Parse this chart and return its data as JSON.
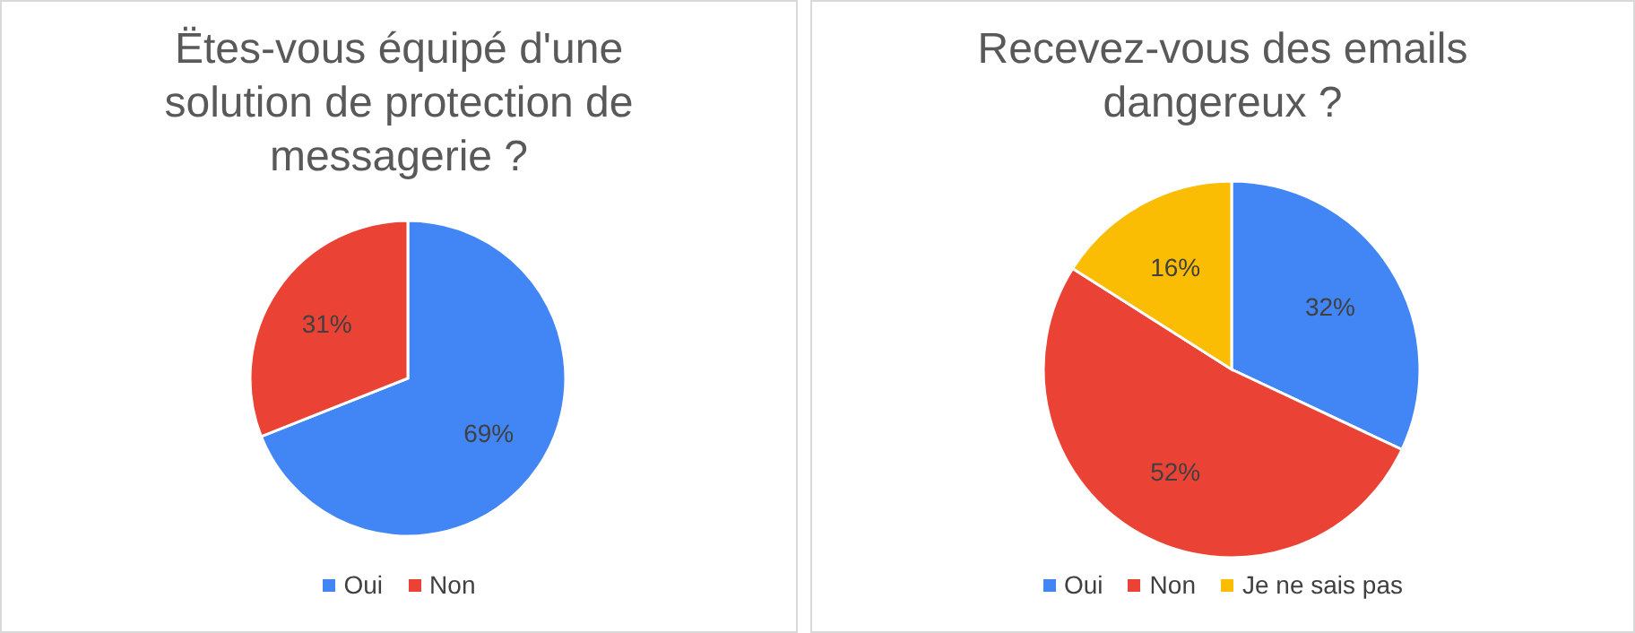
{
  "chart_data": [
    {
      "type": "pie",
      "title": "Ëtes-vous équipé d'une solution de protection de messagerie ?",
      "categories": [
        "Oui",
        "Non"
      ],
      "values": [
        69,
        31
      ],
      "colors": [
        "#4285f4",
        "#ea4335"
      ],
      "value_labels": [
        "69%",
        "31%"
      ],
      "legend": "bottom"
    },
    {
      "type": "pie",
      "title": "Recevez-vous des emails dangereux ?",
      "categories": [
        "Oui",
        "Non",
        "Je ne sais pas"
      ],
      "values": [
        32,
        52,
        16
      ],
      "colors": [
        "#4285f4",
        "#ea4335",
        "#fbbc04"
      ],
      "value_labels": [
        "32%",
        "52%",
        "16%"
      ],
      "legend": "bottom"
    }
  ]
}
